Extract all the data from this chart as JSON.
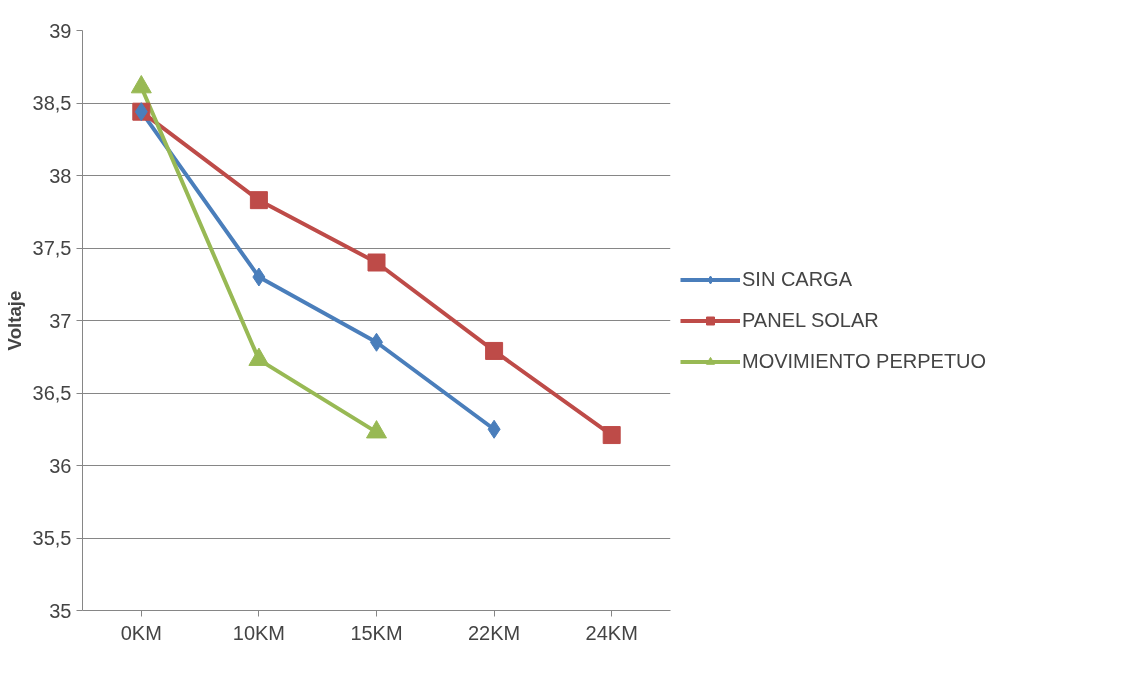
{
  "chart_data": {
    "type": "line",
    "ylabel": "Voltaje",
    "categories": [
      "0KM",
      "10KM",
      "15KM",
      "22KM",
      "24KM"
    ],
    "series": [
      {
        "name": "SIN CARGA",
        "color": "#4a7ebb",
        "marker": "diamond",
        "values": [
          38.44,
          37.3,
          36.85,
          36.25,
          null
        ]
      },
      {
        "name": "PANEL SOLAR",
        "color": "#be4b48",
        "marker": "square",
        "values": [
          38.44,
          37.83,
          37.4,
          36.79,
          36.21
        ]
      },
      {
        "name": "MOVIMIENTO PERPETUO",
        "color": "#98b954",
        "marker": "triangle",
        "values": [
          38.61,
          36.73,
          36.23,
          null,
          null
        ]
      }
    ],
    "ylim": [
      35,
      39
    ],
    "yticks": [
      35,
      {
        "value": 35.5,
        "label": "35,5"
      },
      36,
      {
        "value": 36.5,
        "label": "36,5"
      },
      37,
      {
        "value": 37.5,
        "label": "37,5"
      },
      38,
      {
        "value": 38.5,
        "label": "38,5"
      },
      39
    ],
    "grid": "y",
    "legend": "right"
  }
}
